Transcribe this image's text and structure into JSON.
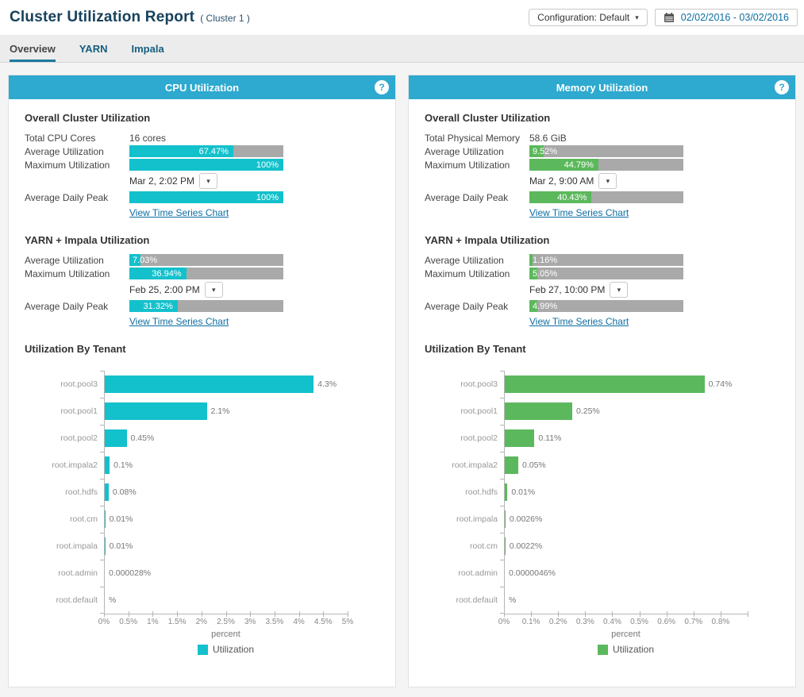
{
  "icons": {
    "caret_down": "▾",
    "help": "?"
  },
  "colors": {
    "panel_header": "#2EA9CF",
    "cpu_bar": "#13C1CC",
    "memory_bar": "#5CB85C",
    "bar_track": "#A9A9A9",
    "link": "#0D6EA1"
  },
  "header": {
    "title": "Cluster Utilization Report",
    "subtitle": "( Cluster 1 )",
    "configuration_button": "Configuration: Default",
    "date_range": "02/02/2016 - 03/02/2016"
  },
  "tabs": {
    "overview": "Overview",
    "yarn": "YARN",
    "impala": "Impala"
  },
  "panels": [
    {
      "title": "CPU Utilization",
      "header_color": "#2EA9CF",
      "bar_color": "#13C1CC",
      "overall": {
        "heading": "Overall Cluster Utilization",
        "total_label": "Total CPU Cores",
        "total_value": "16 cores",
        "avg_label": "Average Utilization",
        "avg_value": 67.47,
        "avg_text": "67.47%",
        "max_label": "Maximum Utilization",
        "max_value": 100,
        "max_text": "100%",
        "max_timestamp": "Mar 2, 2:02 PM",
        "peak_label": "Average Daily Peak",
        "peak_value": 100,
        "peak_text": "100%",
        "link": "View Time Series Chart"
      },
      "yarn_impala": {
        "heading": "YARN + Impala Utilization",
        "avg_label": "Average Utilization",
        "avg_value": 7.03,
        "avg_text": "7.03%",
        "max_label": "Maximum Utilization",
        "max_value": 36.94,
        "max_text": "36.94%",
        "max_timestamp": "Feb 25, 2:00 PM",
        "peak_label": "Average Daily Peak",
        "peak_value": 31.32,
        "peak_text": "31.32%",
        "link": "View Time Series Chart"
      },
      "tenant_heading": "Utilization By Tenant"
    },
    {
      "title": "Memory Utilization",
      "header_color": "#2EA9CF",
      "bar_color": "#5CB85C",
      "overall": {
        "heading": "Overall Cluster Utilization",
        "total_label": "Total Physical Memory",
        "total_value": "58.6 GiB",
        "avg_label": "Average Utilization",
        "avg_value": 9.52,
        "avg_text": "9.52%",
        "max_label": "Maximum Utilization",
        "max_value": 44.79,
        "max_text": "44.79%",
        "max_timestamp": "Mar 2, 9:00 AM",
        "peak_label": "Average Daily Peak",
        "peak_value": 40.43,
        "peak_text": "40.43%",
        "link": "View Time Series Chart"
      },
      "yarn_impala": {
        "heading": "YARN + Impala Utilization",
        "avg_label": "Average Utilization",
        "avg_value": 1.16,
        "avg_text": "1.16%",
        "max_label": "Maximum Utilization",
        "max_value": 5.05,
        "max_text": "5.05%",
        "max_timestamp": "Feb 27, 10:00 PM",
        "peak_label": "Average Daily Peak",
        "peak_value": 4.99,
        "peak_text": "4.99%",
        "link": "View Time Series Chart"
      },
      "tenant_heading": "Utilization By Tenant"
    }
  ],
  "chart_data": [
    {
      "type": "bar",
      "orientation": "horizontal",
      "title": "Utilization By Tenant",
      "categories": [
        "root.pool3",
        "root.pool1",
        "root.pool2",
        "root.impala2",
        "root.hdfs",
        "root.cm",
        "root.impala",
        "root.admin",
        "root.default"
      ],
      "values": [
        4.3,
        2.1,
        0.45,
        0.1,
        0.08,
        0.01,
        0.01,
        2.8e-05,
        0
      ],
      "labels": [
        "4.3%",
        "2.1%",
        "0.45%",
        "0.1%",
        "0.08%",
        "0.01%",
        "0.01%",
        "0.000028%",
        "%"
      ],
      "xlabel": "percent",
      "xlim": [
        0,
        5
      ],
      "xticks": [
        [
          0,
          "0%"
        ],
        [
          0.5,
          "0.5%"
        ],
        [
          1,
          "1%"
        ],
        [
          1.5,
          "1.5%"
        ],
        [
          2,
          "2%"
        ],
        [
          2.5,
          "2.5%"
        ],
        [
          3,
          "3%"
        ],
        [
          3.5,
          "3.5%"
        ],
        [
          4,
          "4%"
        ],
        [
          4.5,
          "4.5%"
        ],
        [
          5,
          "5%"
        ]
      ],
      "legend": "Utilization",
      "legend_position": "bottom",
      "grid": false,
      "color": "#13C1CC"
    },
    {
      "type": "bar",
      "orientation": "horizontal",
      "title": "Utilization By Tenant",
      "categories": [
        "root.pool3",
        "root.pool1",
        "root.pool2",
        "root.impala2",
        "root.hdfs",
        "root.impala",
        "root.cm",
        "root.admin",
        "root.default"
      ],
      "values": [
        0.74,
        0.25,
        0.11,
        0.05,
        0.01,
        0.0026,
        0.0022,
        4.6e-06,
        0
      ],
      "labels": [
        "0.74%",
        "0.25%",
        "0.11%",
        "0.05%",
        "0.01%",
        "0.0026%",
        "0.0022%",
        "0.0000046%",
        "%"
      ],
      "xlabel": "percent",
      "xlim": [
        0,
        0.9
      ],
      "xticks": [
        [
          0,
          "0%"
        ],
        [
          0.1,
          "0.1%"
        ],
        [
          0.2,
          "0.2%"
        ],
        [
          0.3,
          "0.3%"
        ],
        [
          0.4,
          "0.4%"
        ],
        [
          0.5,
          "0.5%"
        ],
        [
          0.6,
          "0.6%"
        ],
        [
          0.7,
          "0.7%"
        ],
        [
          0.8,
          "0.8%"
        ],
        [
          0.9,
          ""
        ]
      ],
      "legend": "Utilization",
      "legend_position": "bottom",
      "grid": false,
      "color": "#5CB85C"
    }
  ]
}
